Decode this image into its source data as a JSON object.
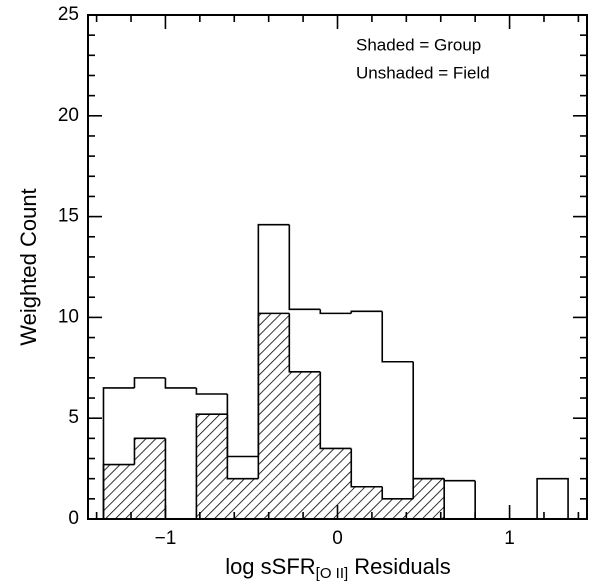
{
  "chart_data": {
    "type": "histogram",
    "xlabel": {
      "text": "log sSFR",
      "subscript": "[O II]",
      "suffix": "Residuals"
    },
    "ylabel": "Weighted Count",
    "annotations": [
      "Shaded = Group",
      "Unshaded = Field"
    ],
    "bins": [
      -1.36,
      -1.18,
      -1.0,
      -0.82,
      -0.64,
      -0.46,
      -0.28,
      -0.1,
      0.08,
      0.26,
      0.44,
      0.62,
      0.8,
      0.98,
      1.16,
      1.34
    ],
    "series": [
      {
        "name": "Field",
        "color": "#000000",
        "hatch": false,
        "values": [
          6.5,
          7.0,
          6.5,
          6.2,
          3.1,
          14.6,
          10.4,
          10.2,
          10.3,
          7.8,
          2.0,
          1.9,
          0,
          0,
          2.0
        ]
      },
      {
        "name": "Group",
        "color": "#000000",
        "hatch": true,
        "values": [
          2.7,
          4.0,
          0,
          5.2,
          2.0,
          10.2,
          7.3,
          3.5,
          1.6,
          1.0,
          2.0,
          0,
          0,
          0,
          0
        ]
      }
    ],
    "xlim": [
      -1.45,
      1.45
    ],
    "ylim": [
      0,
      25
    ],
    "xticks": [
      {
        "value": -1,
        "label": "−1"
      },
      0,
      1
    ],
    "yticks": [
      0,
      5,
      10,
      15,
      20,
      25
    ],
    "xminorticks": [
      -1.4,
      -1.2,
      -0.8,
      -0.6,
      -0.4,
      -0.2,
      0.2,
      0.4,
      0.6,
      0.8,
      1.2,
      1.4
    ],
    "yminorticks": [
      1,
      2,
      3,
      4,
      6,
      7,
      8,
      9,
      11,
      12,
      13,
      14,
      16,
      17,
      18,
      19,
      21,
      22,
      23,
      24
    ]
  }
}
